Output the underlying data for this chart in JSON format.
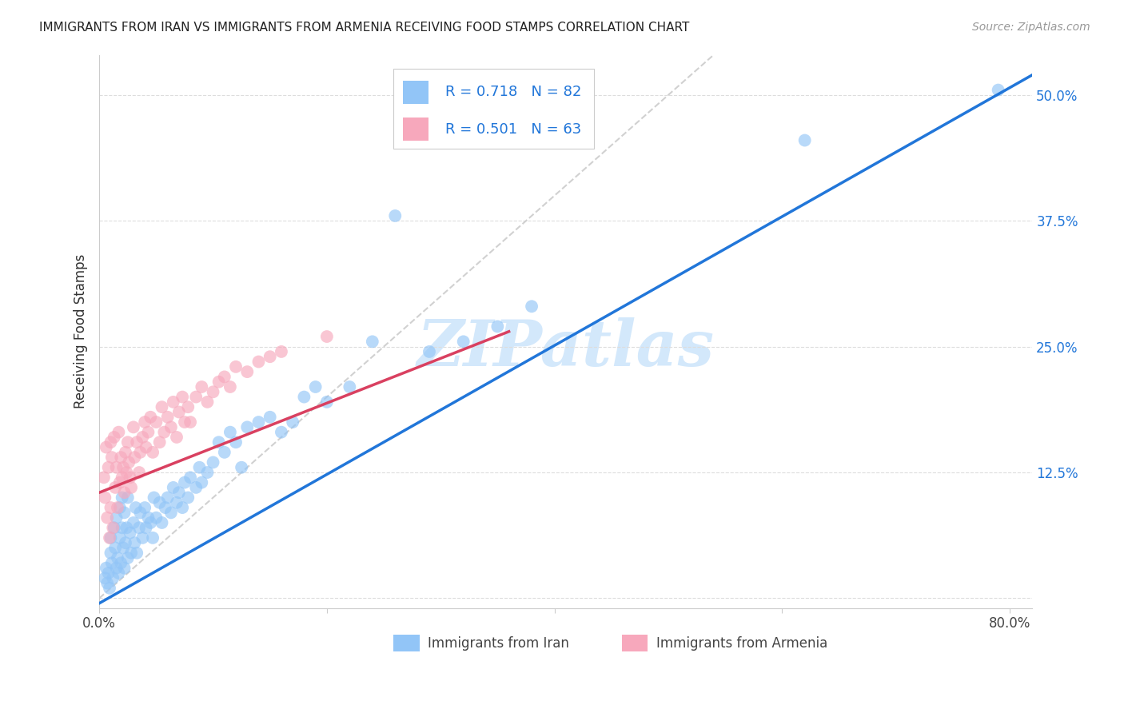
{
  "title": "IMMIGRANTS FROM IRAN VS IMMIGRANTS FROM ARMENIA RECEIVING FOOD STAMPS CORRELATION CHART",
  "source": "Source: ZipAtlas.com",
  "ylabel": "Receiving Food Stamps",
  "yticks": [
    0.0,
    0.125,
    0.25,
    0.375,
    0.5
  ],
  "ytick_labels": [
    "",
    "12.5%",
    "25.0%",
    "37.5%",
    "50.0%"
  ],
  "xticks": [
    0.0,
    0.2,
    0.4,
    0.6,
    0.8
  ],
  "xtick_labels": [
    "0.0%",
    "",
    "",
    "",
    "80.0%"
  ],
  "xlim": [
    0.0,
    0.82
  ],
  "ylim": [
    -0.01,
    0.54
  ],
  "iran_R": 0.718,
  "iran_N": 82,
  "armenia_R": 0.501,
  "armenia_N": 63,
  "iran_color": "#92c5f7",
  "armenia_color": "#f7a8bc",
  "iran_line_color": "#2176d9",
  "armenia_line_color": "#d94060",
  "diagonal_color": "#cccccc",
  "watermark": "ZIPatlas",
  "watermark_color": "#d3e8fb",
  "legend_iran_label": "Immigrants from Iran",
  "legend_armenia_label": "Immigrants from Armenia",
  "iran_line_x0": 0.0,
  "iran_line_y0": -0.005,
  "iran_line_x1": 0.82,
  "iran_line_y1": 0.52,
  "armenia_line_x0": 0.0,
  "armenia_line_y0": 0.105,
  "armenia_line_x1": 0.36,
  "armenia_line_y1": 0.265,
  "iran_scatter_x": [
    0.005,
    0.006,
    0.007,
    0.008,
    0.009,
    0.01,
    0.01,
    0.011,
    0.012,
    0.013,
    0.014,
    0.015,
    0.015,
    0.016,
    0.017,
    0.018,
    0.018,
    0.019,
    0.02,
    0.02,
    0.021,
    0.022,
    0.022,
    0.023,
    0.024,
    0.025,
    0.025,
    0.027,
    0.028,
    0.03,
    0.031,
    0.032,
    0.033,
    0.035,
    0.036,
    0.038,
    0.04,
    0.041,
    0.043,
    0.045,
    0.047,
    0.048,
    0.05,
    0.053,
    0.055,
    0.058,
    0.06,
    0.063,
    0.065,
    0.068,
    0.07,
    0.073,
    0.075,
    0.078,
    0.08,
    0.085,
    0.088,
    0.09,
    0.095,
    0.1,
    0.105,
    0.11,
    0.115,
    0.12,
    0.125,
    0.13,
    0.14,
    0.15,
    0.16,
    0.17,
    0.18,
    0.19,
    0.2,
    0.22,
    0.24,
    0.26,
    0.29,
    0.32,
    0.35,
    0.38,
    0.62,
    0.79
  ],
  "iran_scatter_y": [
    0.02,
    0.03,
    0.015,
    0.025,
    0.01,
    0.045,
    0.06,
    0.035,
    0.02,
    0.07,
    0.05,
    0.03,
    0.08,
    0.04,
    0.025,
    0.06,
    0.09,
    0.035,
    0.07,
    0.1,
    0.05,
    0.03,
    0.085,
    0.055,
    0.07,
    0.04,
    0.1,
    0.065,
    0.045,
    0.075,
    0.055,
    0.09,
    0.045,
    0.07,
    0.085,
    0.06,
    0.09,
    0.07,
    0.08,
    0.075,
    0.06,
    0.1,
    0.08,
    0.095,
    0.075,
    0.09,
    0.1,
    0.085,
    0.11,
    0.095,
    0.105,
    0.09,
    0.115,
    0.1,
    0.12,
    0.11,
    0.13,
    0.115,
    0.125,
    0.135,
    0.155,
    0.145,
    0.165,
    0.155,
    0.13,
    0.17,
    0.175,
    0.18,
    0.165,
    0.175,
    0.2,
    0.21,
    0.195,
    0.21,
    0.255,
    0.38,
    0.245,
    0.255,
    0.27,
    0.29,
    0.455,
    0.505
  ],
  "armenia_scatter_x": [
    0.004,
    0.005,
    0.006,
    0.007,
    0.008,
    0.009,
    0.01,
    0.01,
    0.011,
    0.012,
    0.013,
    0.014,
    0.015,
    0.016,
    0.017,
    0.018,
    0.019,
    0.02,
    0.021,
    0.022,
    0.023,
    0.024,
    0.025,
    0.026,
    0.027,
    0.028,
    0.03,
    0.031,
    0.033,
    0.035,
    0.036,
    0.038,
    0.04,
    0.041,
    0.043,
    0.045,
    0.047,
    0.05,
    0.053,
    0.055,
    0.057,
    0.06,
    0.063,
    0.065,
    0.068,
    0.07,
    0.073,
    0.075,
    0.078,
    0.08,
    0.085,
    0.09,
    0.095,
    0.1,
    0.105,
    0.11,
    0.115,
    0.12,
    0.13,
    0.14,
    0.15,
    0.16,
    0.2
  ],
  "armenia_scatter_y": [
    0.12,
    0.1,
    0.15,
    0.08,
    0.13,
    0.06,
    0.155,
    0.09,
    0.14,
    0.07,
    0.16,
    0.11,
    0.13,
    0.09,
    0.165,
    0.115,
    0.14,
    0.12,
    0.13,
    0.105,
    0.145,
    0.125,
    0.155,
    0.135,
    0.12,
    0.11,
    0.17,
    0.14,
    0.155,
    0.125,
    0.145,
    0.16,
    0.175,
    0.15,
    0.165,
    0.18,
    0.145,
    0.175,
    0.155,
    0.19,
    0.165,
    0.18,
    0.17,
    0.195,
    0.16,
    0.185,
    0.2,
    0.175,
    0.19,
    0.175,
    0.2,
    0.21,
    0.195,
    0.205,
    0.215,
    0.22,
    0.21,
    0.23,
    0.225,
    0.235,
    0.24,
    0.245,
    0.26
  ]
}
